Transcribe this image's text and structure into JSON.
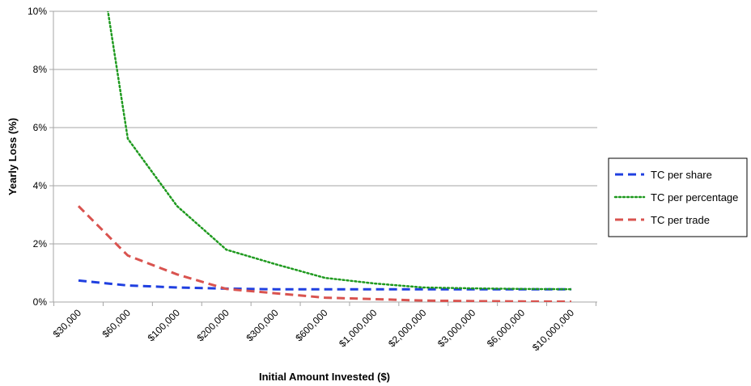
{
  "chart_data": {
    "type": "line",
    "title": "",
    "xlabel": "Initial Amount Invested ($)",
    "ylabel": "Yearly Loss (%)",
    "categories": [
      "$30,000",
      "$60,000",
      "$100,000",
      "$200,000",
      "$300,000",
      "$600,000",
      "$1,000,000",
      "$2,000,000",
      "$3,000,000",
      "$6,000,000",
      "$10,000,000"
    ],
    "yticks": [
      "0%",
      "2%",
      "4%",
      "6%",
      "8%",
      "10%"
    ],
    "ylim": [
      0,
      10
    ],
    "grid": true,
    "legend_position": "right",
    "series": [
      {
        "name": "TC per share",
        "color": "#1f3fe0",
        "dash": "dashed",
        "values": [
          0.74,
          0.57,
          0.5,
          0.46,
          0.44,
          0.44,
          0.44,
          0.44,
          0.44,
          0.44,
          0.44
        ]
      },
      {
        "name": "TC per percentage",
        "color": "#1f9a1f",
        "dash": "dotted",
        "values": [
          16.5,
          5.62,
          3.3,
          1.8,
          1.3,
          0.83,
          0.64,
          0.5,
          0.47,
          0.45,
          0.44
        ]
      },
      {
        "name": "TC per trade",
        "color": "#d9534f",
        "dash": "dashed",
        "values": [
          3.3,
          1.6,
          0.95,
          0.45,
          0.3,
          0.15,
          0.1,
          0.05,
          0.03,
          0.02,
          0.01
        ]
      }
    ]
  }
}
